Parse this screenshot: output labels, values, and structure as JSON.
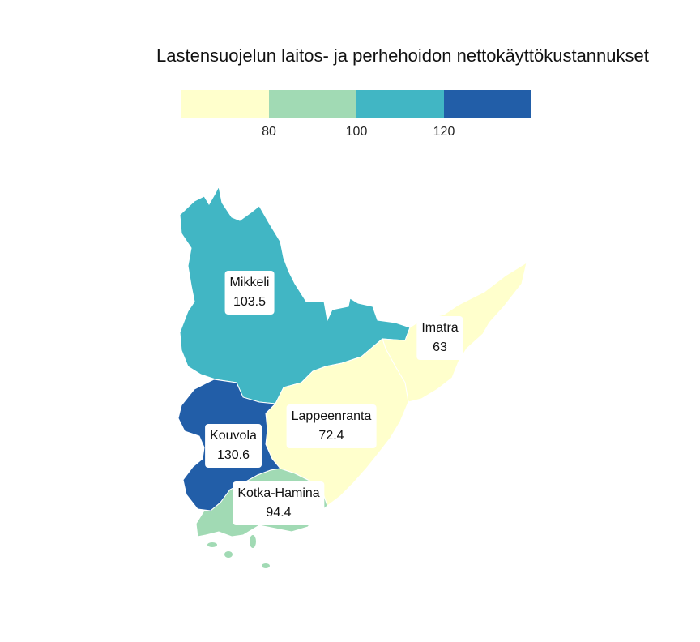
{
  "title": "Lastensuojelun laitos- ja perhehoidon nettokäyttökustannukset",
  "legend": {
    "colors": [
      "#ffffcc",
      "#a1dab4",
      "#41b6c4",
      "#225ea8"
    ],
    "ticks": [
      "80",
      "100",
      "120"
    ]
  },
  "regions": [
    {
      "name": "Mikkeli",
      "value": "103.5",
      "color": "#41b6c4"
    },
    {
      "name": "Imatra",
      "value": "63",
      "color": "#ffffcc"
    },
    {
      "name": "Lappeenranta",
      "value": "72.4",
      "color": "#ffffcc"
    },
    {
      "name": "Kouvola",
      "value": "130.6",
      "color": "#225ea8"
    },
    {
      "name": "Kotka-Hamina",
      "value": "94.4",
      "color": "#a1dab4"
    }
  ]
}
